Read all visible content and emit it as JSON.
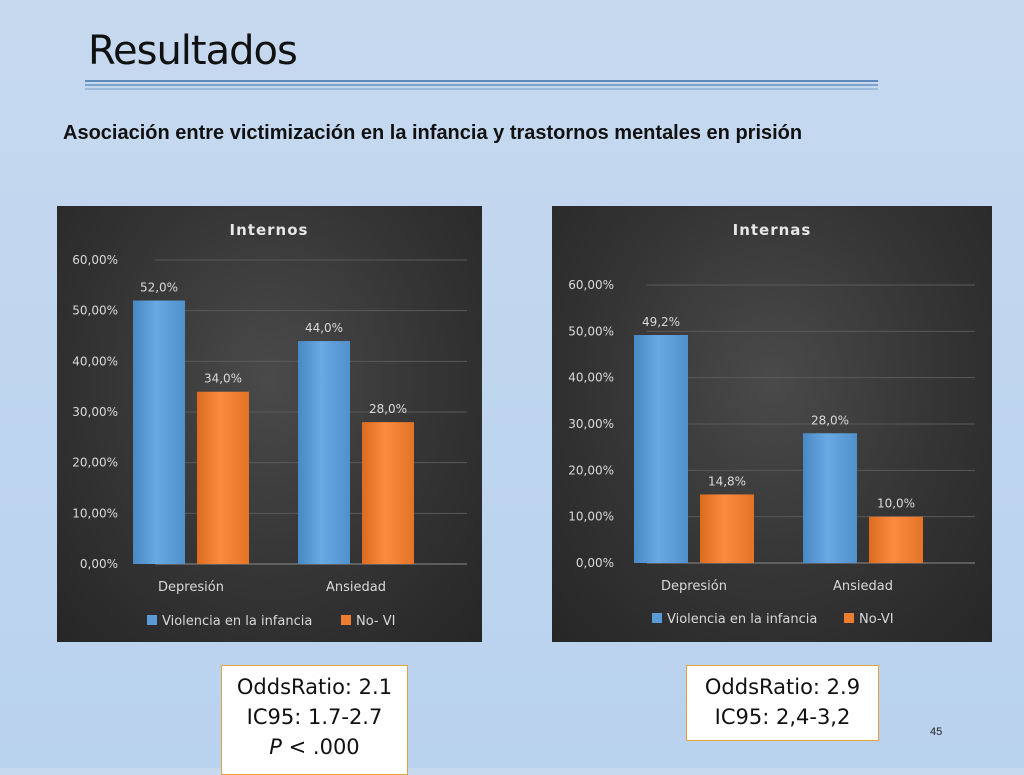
{
  "slide": {
    "title": "Resultados",
    "subtitle": "Asociación entre victimización en la infancia y trastornos mentales en prisión",
    "page_number": "45"
  },
  "colors": {
    "series_1": "#5b9bd5",
    "series_2": "#ed7d31",
    "panel_bg": "#333333",
    "box_border": "#e3a23a"
  },
  "stats": [
    {
      "odds_ratio": "OddsRatio: 2.1",
      "ci": "IC95: 1.7-2.7",
      "p_label": "P",
      "p_rest": " < .000"
    },
    {
      "odds_ratio": "OddsRatio: 2.9",
      "ci": "IC95: 2,4-3,2"
    }
  ],
  "chart_data": [
    {
      "type": "bar",
      "title": "Internos",
      "categories": [
        "Depresión",
        "Ansiedad"
      ],
      "series": [
        {
          "name": "Violencia en la infancia",
          "values": [
            52.0,
            44.0
          ],
          "labels": [
            "52,0%",
            "44,0%"
          ]
        },
        {
          "name": "No- VI",
          "values": [
            34.0,
            28.0
          ],
          "labels": [
            "34,0%",
            "28,0%"
          ]
        }
      ],
      "ylim": [
        0,
        60
      ],
      "yticks": [
        "0,00%",
        "10,00%",
        "20,00%",
        "30,00%",
        "40,00%",
        "50,00%",
        "60,00%"
      ],
      "grid": true,
      "legend": "bottom"
    },
    {
      "type": "bar",
      "title": "Internas",
      "categories": [
        "Depresión",
        "Ansiedad"
      ],
      "series": [
        {
          "name": "Violencia en la infancia",
          "values": [
            49.2,
            28.0
          ],
          "labels": [
            "49,2%",
            "28,0%"
          ]
        },
        {
          "name": "No-VI",
          "values": [
            14.8,
            10.0
          ],
          "labels": [
            "14,8%",
            "10,0%"
          ]
        }
      ],
      "ylim": [
        0,
        60
      ],
      "yticks": [
        "0,00%",
        "10,00%",
        "20,00%",
        "30,00%",
        "40,00%",
        "50,00%",
        "60,00%"
      ],
      "grid": true,
      "legend": "bottom"
    }
  ]
}
